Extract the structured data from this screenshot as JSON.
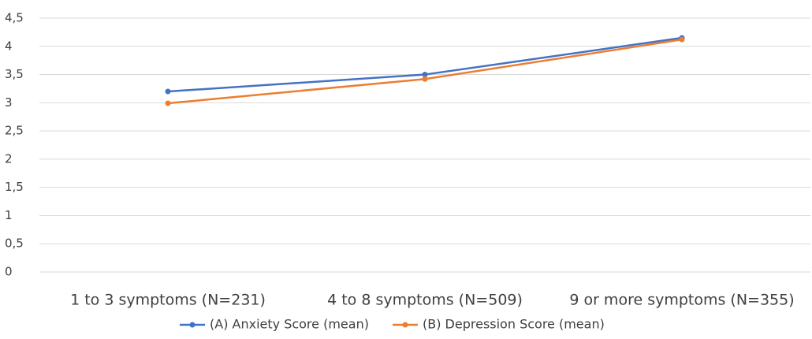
{
  "chart_data": {
    "type": "line",
    "categories": [
      "1 to 3 symptoms (N=231)",
      "4 to 8 symptoms (N=509)",
      "9 or more symptoms (N=355)"
    ],
    "series": [
      {
        "name": "(A) Anxiety Score (mean)",
        "color": "#4472c4",
        "values": [
          3.2,
          3.5,
          4.15
        ]
      },
      {
        "name": "(B) Depression Score (mean)",
        "color": "#ed7d31",
        "values": [
          2.99,
          3.42,
          4.12
        ]
      }
    ],
    "ylim": [
      0,
      4.5
    ],
    "yticks": [
      0,
      {
        "value": 0.5,
        "label": "0,5"
      },
      1,
      {
        "value": 1.5,
        "label": "1,5"
      },
      2,
      {
        "value": 2.5,
        "label": "2,5"
      },
      3,
      {
        "value": 3.5,
        "label": "3,5"
      },
      4,
      {
        "value": 4.5,
        "label": "4,5"
      }
    ],
    "grid": true,
    "legend": "bottom"
  }
}
